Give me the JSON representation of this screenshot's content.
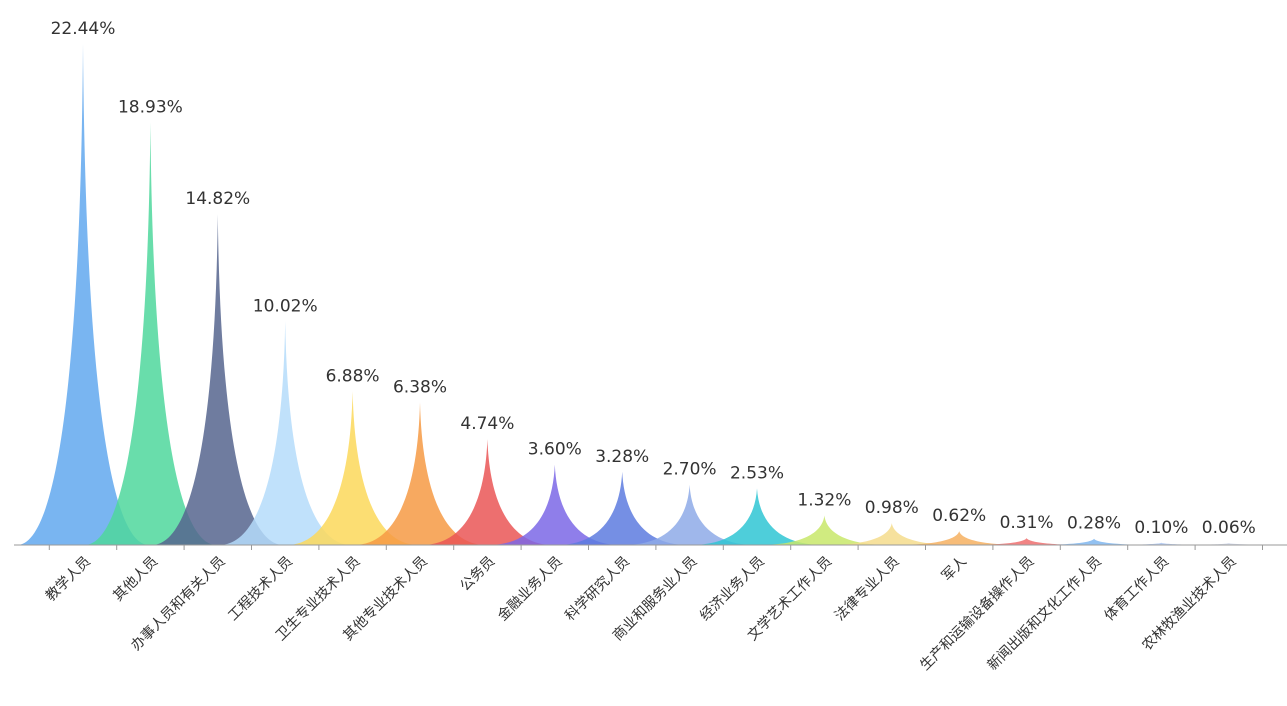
{
  "chart_data": {
    "type": "bar",
    "title": "",
    "xlabel": "",
    "ylabel": "",
    "ylim": [
      0,
      22.44
    ],
    "grid": false,
    "categories": [
      "教学人员",
      "其他人员",
      "办事人员和有关人员",
      "工程技术人员",
      "卫生专业技术人员",
      "其他专业技术人员",
      "公务员",
      "金融业务人员",
      "科学研究人员",
      "商业和服务业人员",
      "经济业务人员",
      "文学艺术工作人员",
      "法律专业人员",
      "军人",
      "生产和运输设备操作人员",
      "新闻出版和文化工作人员",
      "体育工作人员",
      "农林牧渔业技术人员"
    ],
    "values": [
      22.44,
      18.93,
      14.82,
      10.02,
      6.88,
      6.38,
      4.74,
      3.6,
      3.28,
      2.7,
      2.53,
      1.32,
      0.98,
      0.62,
      0.31,
      0.28,
      0.1,
      0.06
    ],
    "data_labels": [
      "22.44%",
      "18.93%",
      "14.82%",
      "10.02%",
      "6.88%",
      "6.38%",
      "4.74%",
      "3.60%",
      "3.28%",
      "2.70%",
      "2.53%",
      "1.32%",
      "0.98%",
      "0.62%",
      "0.31%",
      "0.28%",
      "0.10%",
      "0.06%"
    ],
    "colors": [
      "#62a8ee",
      "#4fd79c",
      "#56658e",
      "#b5dcfa",
      "#fbd85a",
      "#f69a44",
      "#ea5656",
      "#7b67e6",
      "#5d7bdf",
      "#8eaae8",
      "#2fc6d4",
      "#c8e86a",
      "#f4dc8c",
      "#f6b060",
      "#ee6f6f",
      "#7fb6ee",
      "#a9c3f0",
      "#cfd6e8"
    ]
  }
}
